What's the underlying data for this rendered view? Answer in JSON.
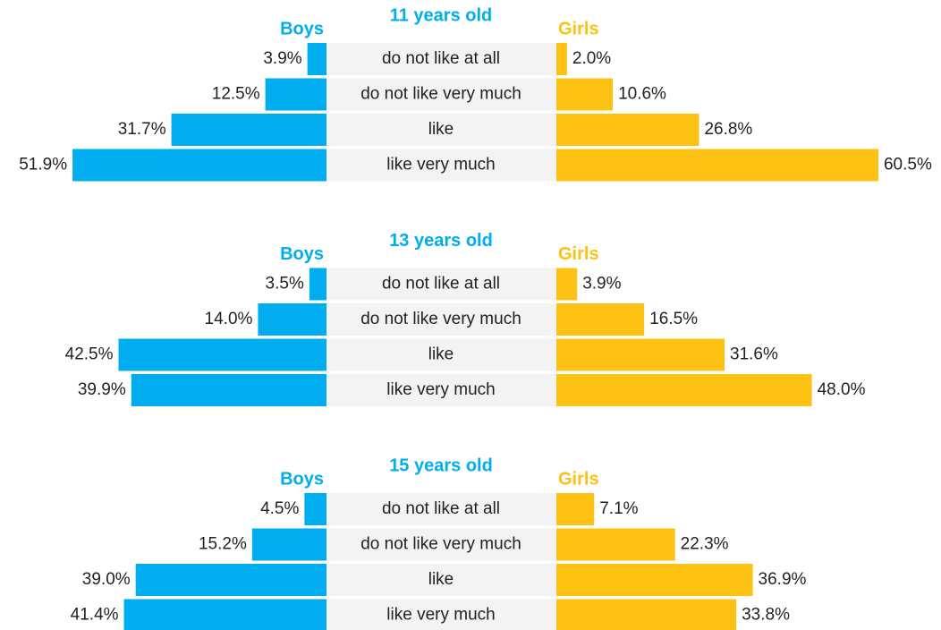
{
  "chart_data": [
    {
      "type": "butterfly",
      "title": "11 years old",
      "categories": [
        "do not like at all",
        "do not like very much",
        "like",
        "like very much"
      ],
      "series": [
        {
          "name": "Boys",
          "color": "#00aeef",
          "values": [
            3.9,
            12.5,
            31.7,
            51.9
          ],
          "value_labels": [
            "3.9%",
            "12.5%",
            "31.7%",
            "51.9%"
          ]
        },
        {
          "name": "Girls",
          "color": "#fdc114",
          "values": [
            2.0,
            10.6,
            26.8,
            60.5
          ],
          "value_labels": [
            "2.0%",
            "10.6%",
            "26.8%",
            "60.5%"
          ]
        }
      ]
    },
    {
      "type": "butterfly",
      "title": "13 years old",
      "categories": [
        "do not like at all",
        "do not like very much",
        "like",
        "like very much"
      ],
      "series": [
        {
          "name": "Boys",
          "color": "#00aeef",
          "values": [
            3.5,
            14.0,
            42.5,
            39.9
          ],
          "value_labels": [
            "3.5%",
            "14.0%",
            "42.5%",
            "39.9%"
          ]
        },
        {
          "name": "Girls",
          "color": "#fdc114",
          "values": [
            3.9,
            16.5,
            31.6,
            48.0
          ],
          "value_labels": [
            "3.9%",
            "16.5%",
            "31.6%",
            "48.0%"
          ]
        }
      ]
    },
    {
      "type": "butterfly",
      "title": "15 years old",
      "categories": [
        "do not like at all",
        "do not like very much",
        "like",
        "like very much"
      ],
      "series": [
        {
          "name": "Boys",
          "color": "#00aeef",
          "values": [
            4.5,
            15.2,
            39.0,
            41.4
          ],
          "value_labels": [
            "4.5%",
            "15.2%",
            "39.0%",
            "41.4%"
          ]
        },
        {
          "name": "Girls",
          "color": "#fdc114",
          "values": [
            7.1,
            22.3,
            36.9,
            33.8
          ],
          "value_labels": [
            "7.1%",
            "22.3%",
            "36.9%",
            "33.8%"
          ]
        }
      ]
    }
  ]
}
